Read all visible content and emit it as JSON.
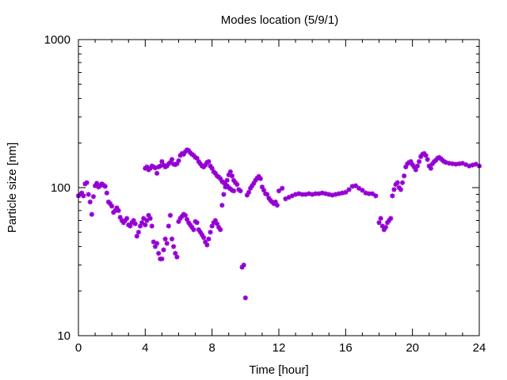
{
  "chart_data": {
    "type": "scatter",
    "title": "Modes location (5/9/1)",
    "xlabel": "Time [hour]",
    "ylabel": "Particle size [nm]",
    "xlim": [
      0,
      24
    ],
    "ylim": [
      10,
      1000
    ],
    "yscale": "log",
    "xticks": [
      0,
      4,
      8,
      12,
      16,
      20,
      24
    ],
    "xtick_labels": [
      "0",
      "4",
      "8",
      "12",
      "16",
      "20",
      "24"
    ],
    "yticks": [
      10,
      100,
      1000
    ],
    "ytick_labels": [
      "10",
      "100",
      "1000"
    ],
    "grid": false,
    "legend": "none",
    "marker_color": "#9400d3",
    "series": [
      {
        "x": [
          0.0,
          0.1,
          0.2,
          0.3,
          0.4,
          0.5,
          0.6,
          0.7,
          0.8,
          0.9,
          1.0,
          1.1,
          1.2,
          1.3,
          1.4,
          1.5,
          1.6,
          1.7,
          1.8,
          1.9,
          2.0,
          2.1,
          2.2,
          2.3,
          2.4,
          2.5,
          2.6,
          2.7,
          2.8,
          2.9,
          3.0,
          3.1,
          3.2,
          3.3,
          3.4,
          3.5,
          3.6,
          3.7,
          3.8,
          3.9,
          4.0,
          4.1,
          4.2,
          4.3,
          4.4,
          4.5,
          4.6,
          4.7,
          4.8,
          4.9,
          5.0,
          5.1,
          5.2,
          5.3,
          5.4,
          5.5,
          5.6,
          5.7,
          5.8,
          5.9,
          6.0,
          6.1,
          6.2,
          6.3,
          6.4,
          6.5,
          6.6,
          6.7,
          6.8,
          6.9,
          7.0,
          7.1,
          7.2,
          7.3,
          7.4,
          7.5,
          7.6,
          7.7,
          7.8,
          7.9,
          8.0,
          8.1,
          8.2,
          8.3,
          8.4,
          8.5,
          8.6,
          8.7,
          8.8,
          8.9,
          9.0,
          9.1,
          9.2,
          9.3,
          9.4,
          9.5,
          9.6,
          9.7,
          9.8,
          9.9,
          10.0,
          10.1,
          10.2,
          10.3,
          10.4,
          10.5,
          10.6,
          10.7,
          10.8,
          10.9,
          11.0,
          11.1,
          11.2,
          11.3,
          11.4,
          11.5,
          11.6,
          11.7,
          11.8,
          11.9,
          12.0,
          12.2,
          12.4,
          12.6,
          12.8,
          13.0,
          13.2,
          13.4,
          13.6,
          13.8,
          14.0,
          14.2,
          14.4,
          14.6,
          14.8,
          15.0,
          15.2,
          15.4,
          15.6,
          15.8,
          16.0,
          16.2,
          16.4,
          16.6,
          16.8,
          17.0,
          17.2,
          17.4,
          17.6,
          17.8,
          18.0,
          18.1,
          18.2,
          18.3,
          18.4,
          18.5,
          18.6,
          18.7,
          18.8,
          18.9,
          19.0,
          19.1,
          19.2,
          19.3,
          19.4,
          19.5,
          19.6,
          19.7,
          19.8,
          19.9,
          20.0,
          20.1,
          20.2,
          20.3,
          20.4,
          20.5,
          20.6,
          20.7,
          20.8,
          20.9,
          21.0,
          21.1,
          21.2,
          21.3,
          21.4,
          21.5,
          21.6,
          21.7,
          21.8,
          21.9,
          22.0,
          22.2,
          22.4,
          22.6,
          22.8,
          23.0,
          23.2,
          23.4,
          23.6,
          23.8,
          24.0
        ],
        "y": [
          88,
          90,
          92,
          88,
          106,
          108,
          90,
          80,
          66,
          87,
          103,
          107,
          101,
          103,
          106,
          104,
          102,
          92,
          80,
          78,
          75,
          68,
          70,
          73,
          70,
          63,
          60,
          58,
          60,
          62,
          56,
          55,
          58,
          60,
          57,
          47,
          50,
          55,
          58,
          62,
          56,
          60,
          65,
          62,
          55,
          43,
          40,
          42,
          36,
          33,
          33,
          38,
          45,
          42,
          55,
          65,
          45,
          40,
          36,
          34,
          59,
          62,
          64,
          66,
          65,
          61,
          58,
          56,
          54,
          52,
          59,
          58,
          52,
          50,
          48,
          46,
          43,
          41,
          45,
          50,
          55,
          58,
          60,
          57,
          54,
          52,
          76,
          90,
          101,
          112,
          122,
          128,
          120,
          112,
          108,
          105,
          97,
          95,
          29,
          30,
          18,
          89,
          93,
          99,
          103,
          107,
          112,
          116,
          119,
          115,
          101,
          96,
          91,
          90,
          85,
          82,
          80,
          78,
          80,
          76,
          95,
          99,
          84,
          86,
          88,
          90,
          91,
          90,
          90,
          91,
          90,
          91,
          91,
          92,
          91,
          90,
          89,
          90,
          91,
          92,
          93,
          97,
          102,
          103,
          99,
          96,
          92,
          91,
          91,
          88,
          58,
          62,
          55,
          52,
          54,
          58,
          60,
          62,
          88,
          97,
          105,
          108,
          100,
          97,
          108,
          120,
          138,
          145,
          148,
          150,
          143,
          138,
          132,
          140,
          150,
          162,
          168,
          170,
          165,
          155,
          140,
          135,
          145,
          150,
          153,
          158,
          160,
          157,
          153,
          150,
          148,
          146,
          145,
          144,
          145,
          146,
          143,
          140,
          142,
          144,
          140
        ]
      },
      {
        "x": [
          4.0,
          4.1,
          4.2,
          4.3,
          4.4,
          4.5,
          4.6,
          4.7,
          4.8,
          4.9,
          5.0,
          5.1,
          5.2,
          5.3,
          5.4,
          5.5,
          5.6,
          5.7,
          5.8,
          5.9,
          6.0,
          6.1,
          6.2,
          6.3,
          6.4,
          6.5,
          6.6,
          6.7,
          6.8,
          6.9,
          7.0,
          7.1,
          7.2,
          7.3,
          7.4,
          7.5,
          7.6,
          7.7,
          7.8,
          7.9,
          8.0,
          8.1,
          8.2,
          8.3,
          8.4,
          8.5,
          8.6,
          8.7,
          8.8,
          8.9,
          9.0,
          9.1,
          9.2,
          9.3
        ],
        "y": [
          135,
          138,
          132,
          135,
          140,
          138,
          136,
          125,
          138,
          140,
          150,
          142,
          138,
          140,
          145,
          148,
          155,
          144,
          143,
          145,
          152,
          165,
          170,
          168,
          175,
          180,
          178,
          172,
          168,
          165,
          160,
          158,
          150,
          145,
          140,
          138,
          142,
          148,
          150,
          140,
          135,
          128,
          125,
          120,
          118,
          115,
          110,
          108,
          105,
          103,
          100,
          98,
          96,
          95
        ]
      }
    ]
  }
}
